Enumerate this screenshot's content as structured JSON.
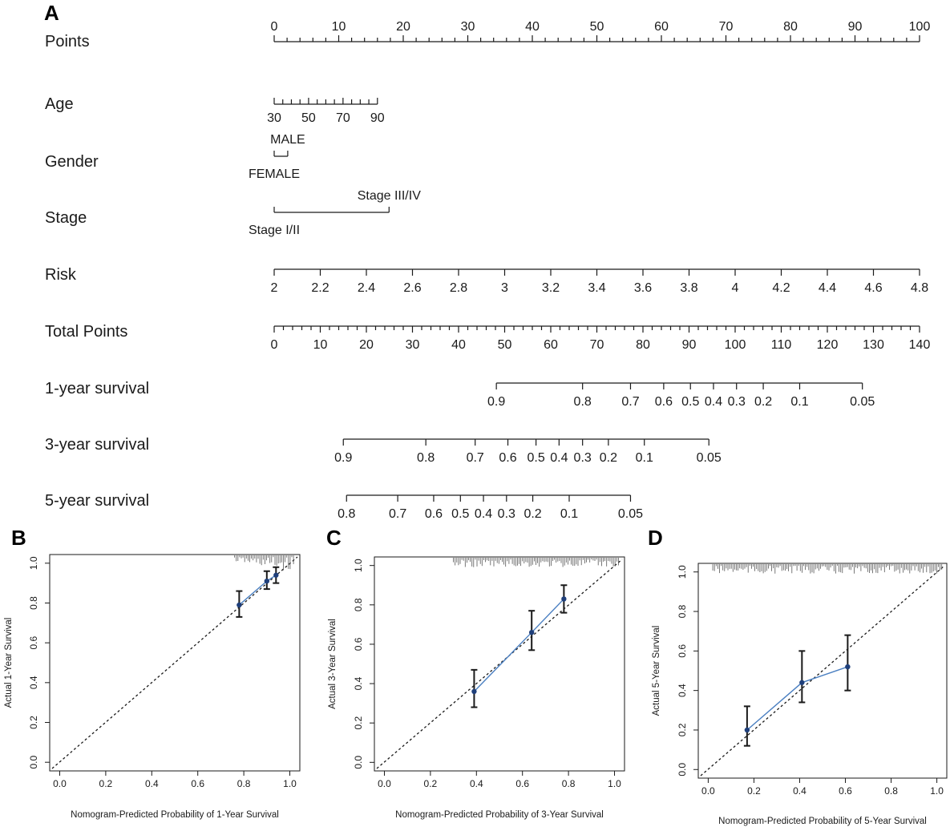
{
  "colors": {
    "ink": "#1a1a1a",
    "calibration_line": "#4a7fc1",
    "point": "#1f3f7a",
    "ideal": "#1a1a1a"
  },
  "chart_data": [
    {
      "panel": "A",
      "type": "nomogram",
      "rows": [
        {
          "id": "points",
          "label": "Points",
          "ticks": [
            "0",
            "10",
            "20",
            "30",
            "40",
            "50",
            "60",
            "70",
            "80",
            "90",
            "100"
          ],
          "minor_ticks": true,
          "labels_above": true
        },
        {
          "id": "age",
          "label": "Age",
          "ticks": [
            "30",
            "50",
            "70",
            "90"
          ],
          "minor_ticks": true,
          "range_points": [
            0,
            16
          ]
        },
        {
          "id": "gender",
          "label": "Gender",
          "levels": [
            {
              "name": "FEMALE",
              "points": 0
            },
            {
              "name": "MALE",
              "points": 2.1
            }
          ]
        },
        {
          "id": "stage",
          "label": "Stage",
          "levels": [
            {
              "name": "Stage I/II",
              "points": 0
            },
            {
              "name": "Stage III/IV",
              "points": 17.8
            }
          ]
        },
        {
          "id": "risk",
          "label": "Risk",
          "ticks": [
            "2",
            "2.2",
            "2.4",
            "2.6",
            "2.8",
            "3",
            "3.2",
            "3.4",
            "3.6",
            "3.8",
            "4",
            "4.2",
            "4.4",
            "4.6",
            "4.8"
          ],
          "range_points": [
            0,
            100
          ]
        },
        {
          "id": "total",
          "label": "Total Points",
          "ticks": [
            "0",
            "10",
            "20",
            "30",
            "40",
            "50",
            "60",
            "70",
            "80",
            "90",
            "100",
            "110",
            "120",
            "130",
            "140"
          ],
          "minor_ticks": true
        },
        {
          "id": "s1",
          "label": "1-year survival",
          "ticks": [
            {
              "v": "0.9",
              "tp": 48.2
            },
            {
              "v": "0.8",
              "tp": 66.9
            },
            {
              "v": "0.7",
              "tp": 77.3
            },
            {
              "v": "0.6",
              "tp": 84.5
            },
            {
              "v": "0.5",
              "tp": 90.3
            },
            {
              "v": "0.4",
              "tp": 95.3
            },
            {
              "v": "0.3",
              "tp": 100.3
            },
            {
              "v": "0.2",
              "tp": 106.1
            },
            {
              "v": "0.1",
              "tp": 114.0
            },
            {
              "v": "0.05",
              "tp": 127.6
            }
          ]
        },
        {
          "id": "s3",
          "label": "3-year survival",
          "ticks": [
            {
              "v": "0.9",
              "tp": 15.0
            },
            {
              "v": "0.8",
              "tp": 32.9
            },
            {
              "v": "0.7",
              "tp": 43.6
            },
            {
              "v": "0.6",
              "tp": 50.7
            },
            {
              "v": "0.5",
              "tp": 56.8
            },
            {
              "v": "0.4",
              "tp": 61.8
            },
            {
              "v": "0.3",
              "tp": 66.9
            },
            {
              "v": "0.2",
              "tp": 72.5
            },
            {
              "v": "0.1",
              "tp": 80.3
            },
            {
              "v": "0.05",
              "tp": 94.3
            }
          ]
        },
        {
          "id": "s5",
          "label": "5-year survival",
          "ticks": [
            {
              "v": "0.8",
              "tp": 15.7
            },
            {
              "v": "0.7",
              "tp": 26.8
            },
            {
              "v": "0.6",
              "tp": 34.6
            },
            {
              "v": "0.5",
              "tp": 40.4
            },
            {
              "v": "0.4",
              "tp": 45.4
            },
            {
              "v": "0.3",
              "tp": 50.4
            },
            {
              "v": "0.2",
              "tp": 56.1
            },
            {
              "v": "0.1",
              "tp": 64.0
            },
            {
              "v": "0.05",
              "tp": 77.3
            }
          ]
        }
      ]
    },
    {
      "panel": "B",
      "type": "scatter",
      "xlabel": "Nomogram-Predicted Probability of 1-Year Survival",
      "ylabel": "Actual 1-Year Survival",
      "xlim": [
        0.0,
        1.0
      ],
      "ylim": [
        0.0,
        1.0
      ],
      "xticks": [
        "0.0",
        "0.2",
        "0.4",
        "0.6",
        "0.8",
        "1.0"
      ],
      "yticks": [
        "0.0",
        "0.2",
        "0.4",
        "0.6",
        "0.8",
        "1.0"
      ],
      "points": [
        {
          "x": 0.78,
          "y": 0.79,
          "lo": 0.73,
          "hi": 0.86
        },
        {
          "x": 0.9,
          "y": 0.91,
          "lo": 0.87,
          "hi": 0.96
        },
        {
          "x": 0.94,
          "y": 0.94,
          "lo": 0.9,
          "hi": 0.98
        }
      ],
      "rug_from": 0.76
    },
    {
      "panel": "C",
      "type": "scatter",
      "xlabel": "Nomogram-Predicted Probability of 3-Year Survival",
      "ylabel": "Actual 3-Year Survival",
      "xlim": [
        0.0,
        1.0
      ],
      "ylim": [
        0.0,
        1.0
      ],
      "xticks": [
        "0.0",
        "0.2",
        "0.4",
        "0.6",
        "0.8",
        "1.0"
      ],
      "yticks": [
        "0.0",
        "0.2",
        "0.4",
        "0.6",
        "0.8",
        "1.0"
      ],
      "points": [
        {
          "x": 0.39,
          "y": 0.36,
          "lo": 0.28,
          "hi": 0.47
        },
        {
          "x": 0.64,
          "y": 0.66,
          "lo": 0.57,
          "hi": 0.77
        },
        {
          "x": 0.78,
          "y": 0.83,
          "lo": 0.76,
          "hi": 0.9
        }
      ],
      "rug_from": 0.3
    },
    {
      "panel": "D",
      "type": "scatter",
      "xlabel": "Nomogram-Predicted Probability of 5-Year Survival",
      "ylabel": "Actual 5-Year Survival",
      "xlim": [
        0.0,
        1.0
      ],
      "ylim": [
        0.0,
        1.0
      ],
      "xticks": [
        "0.0",
        "0.2",
        "0.4",
        "0.6",
        "0.8",
        "1.0"
      ],
      "yticks": [
        "0.0",
        "0.2",
        "0.4",
        "0.6",
        "0.8",
        "1.0"
      ],
      "points": [
        {
          "x": 0.17,
          "y": 0.2,
          "lo": 0.12,
          "hi": 0.32
        },
        {
          "x": 0.41,
          "y": 0.44,
          "lo": 0.34,
          "hi": 0.6
        },
        {
          "x": 0.61,
          "y": 0.52,
          "lo": 0.4,
          "hi": 0.68
        }
      ],
      "rug_from": 0.02
    }
  ]
}
